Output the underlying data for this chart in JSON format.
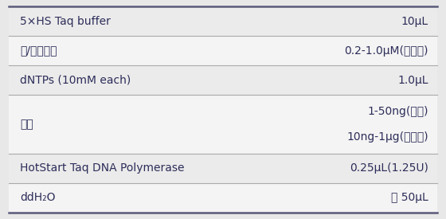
{
  "rows": [
    {
      "left": "5×HS Taq buffer",
      "right": "10μL",
      "right2": null,
      "bg": "#ebebeb"
    },
    {
      "left": "上/下游引物",
      "right": "0.2-1.0μM(终浓度)",
      "right2": null,
      "bg": "#f4f4f4"
    },
    {
      "left": "dNTPs (10mM each)",
      "right": "1.0μL",
      "right2": null,
      "bg": "#ebebeb"
    },
    {
      "left": "模板",
      "right": "1-50ng(质粒)",
      "right2": "10ng-1μg(基因组)",
      "bg": "#f4f4f4"
    },
    {
      "left": "HotStart Taq DNA Polymerase",
      "right": "0.25μL(1.25U)",
      "right2": null,
      "bg": "#ebebeb"
    },
    {
      "left": "ddH₂O",
      "right": "至 50μL",
      "right2": null,
      "bg": "#f4f4f4"
    }
  ],
  "divider_color": "#aaaaaa",
  "text_color": "#2d2d5a",
  "font_size": 10.0,
  "outer_border_color": "#5a5a7a",
  "fig_bg": "#e8e8e8"
}
